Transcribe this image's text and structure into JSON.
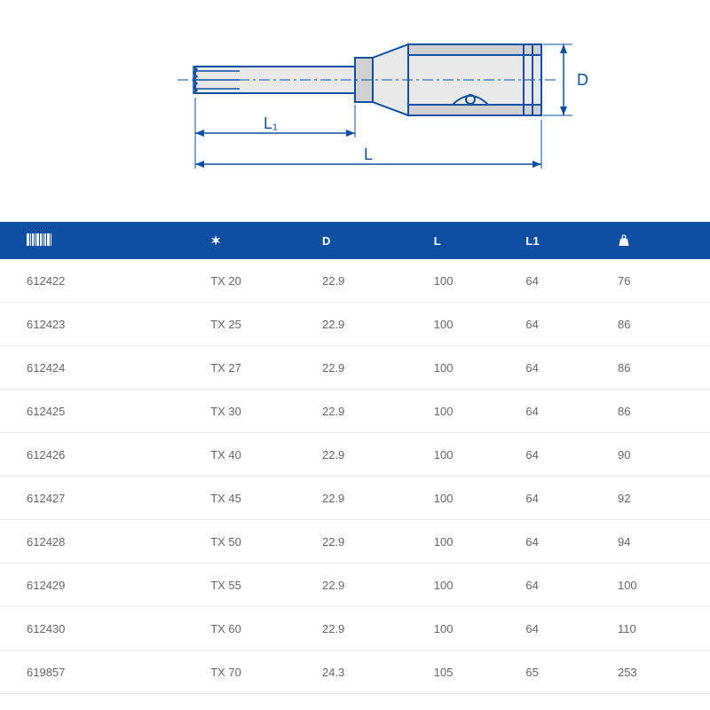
{
  "diagram": {
    "labels": {
      "L": "L",
      "L1": "L₁",
      "D": "D"
    },
    "stroke": "#0e4fa3",
    "fill_light": "#e8e8e8",
    "fill_mid": "#d0d0d0"
  },
  "table": {
    "header_bg": "#0e4fa3",
    "header_fg": "#ffffff",
    "row_border": "#e6e6e6",
    "text_color": "#666666",
    "columns": [
      {
        "key": "code",
        "icon": "barcode-icon"
      },
      {
        "key": "size",
        "icon": "star-icon"
      },
      {
        "key": "D",
        "label": "D"
      },
      {
        "key": "L",
        "label": "L"
      },
      {
        "key": "L1",
        "label": "L1"
      },
      {
        "key": "weight",
        "icon": "weight-icon"
      }
    ],
    "rows": [
      {
        "code": "612422",
        "size": "TX 20",
        "D": "22.9",
        "L": "100",
        "L1": "64",
        "weight": "76"
      },
      {
        "code": "612423",
        "size": "TX 25",
        "D": "22.9",
        "L": "100",
        "L1": "64",
        "weight": "86"
      },
      {
        "code": "612424",
        "size": "TX 27",
        "D": "22.9",
        "L": "100",
        "L1": "64",
        "weight": "86"
      },
      {
        "code": "612425",
        "size": "TX 30",
        "D": "22.9",
        "L": "100",
        "L1": "64",
        "weight": "86"
      },
      {
        "code": "612426",
        "size": "TX 40",
        "D": "22.9",
        "L": "100",
        "L1": "64",
        "weight": "90"
      },
      {
        "code": "612427",
        "size": "TX 45",
        "D": "22.9",
        "L": "100",
        "L1": "64",
        "weight": "92"
      },
      {
        "code": "612428",
        "size": "TX 50",
        "D": "22.9",
        "L": "100",
        "L1": "64",
        "weight": "94"
      },
      {
        "code": "612429",
        "size": "TX 55",
        "D": "22.9",
        "L": "100",
        "L1": "64",
        "weight": "100"
      },
      {
        "code": "612430",
        "size": "TX 60",
        "D": "22.9",
        "L": "100",
        "L1": "64",
        "weight": "110"
      },
      {
        "code": "619857",
        "size": "TX 70",
        "D": "24.3",
        "L": "105",
        "L1": "65",
        "weight": "253"
      }
    ]
  }
}
